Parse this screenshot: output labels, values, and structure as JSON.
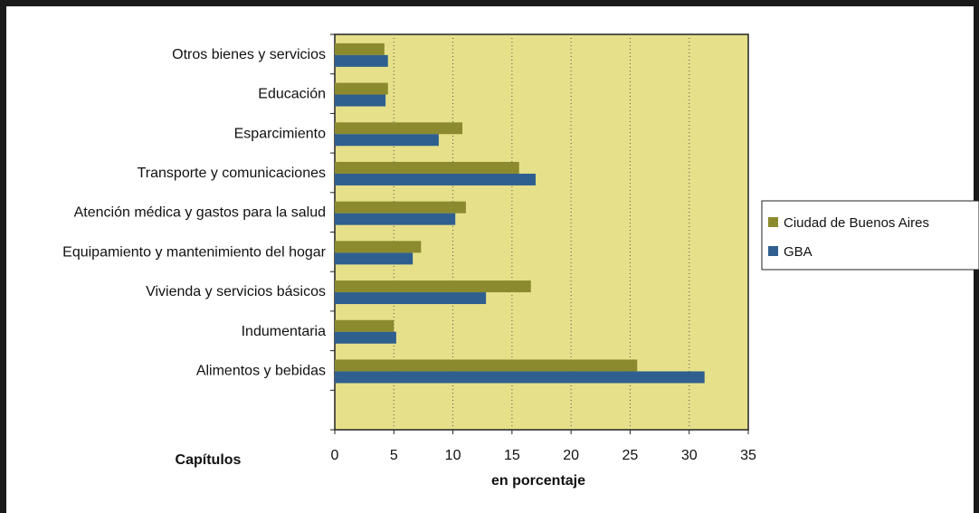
{
  "chart_data": {
    "type": "bar",
    "orientation": "horizontal",
    "categories": [
      "Alimentos y bebidas",
      "Indumentaria",
      "Vivienda y servicios básicos",
      "Equipamiento y mantenimiento del hogar",
      "Atención médica y gastos para la salud",
      "Transporte y comunicaciones",
      "Esparcimiento",
      "Educación",
      "Otros bienes y servicios"
    ],
    "series": [
      {
        "name": "Ciudad de Buenos Aires",
        "color": "#8b8a2e",
        "values": [
          25.6,
          5.0,
          16.6,
          7.3,
          11.1,
          15.6,
          10.8,
          4.5,
          4.2
        ]
      },
      {
        "name": "GBA",
        "color": "#2f5f8f",
        "values": [
          31.3,
          5.2,
          12.8,
          6.6,
          10.2,
          17.0,
          8.8,
          4.3,
          4.5
        ]
      }
    ],
    "xlabel": "en porcentaje",
    "ylabel": "Capítulos",
    "xlim": [
      0,
      35
    ],
    "xticks": [
      "0",
      "5",
      "10",
      "15",
      "20",
      "25",
      "30",
      "35"
    ],
    "grid": "vertical dotted",
    "plot_background": "#e6e08a",
    "legend_position": "right"
  }
}
